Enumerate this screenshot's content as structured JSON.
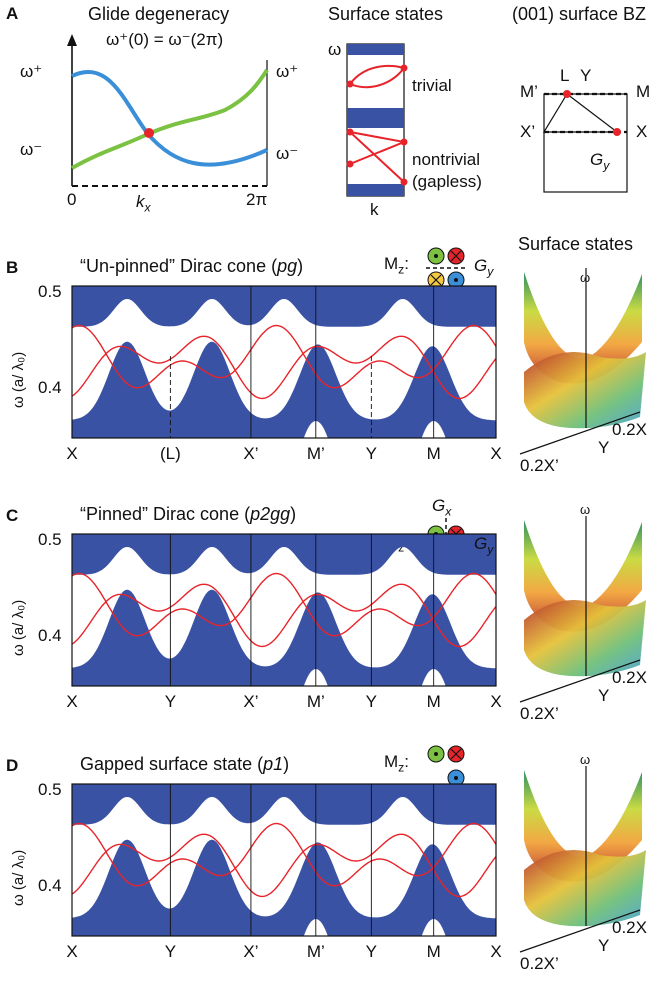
{
  "colors": {
    "band_fill": "#3a52a3",
    "surface_line": "#e8242b",
    "blue_curve": "#3a8fd8",
    "green_curve": "#7cc242",
    "axis": "#111111"
  },
  "panelA": {
    "label": "A",
    "title": "Glide degeneracy",
    "equation": "ω⁺(0) = ω⁻(2π)",
    "y_top": "ω⁺",
    "y_bottom": "ω⁻",
    "r_top": "ω⁺",
    "r_bottom": "ω⁻",
    "x_start": "0",
    "x_mid": "k",
    "x_mid_sub": "x",
    "x_end": "2π"
  },
  "surfaceSchematic": {
    "title": "Surface states",
    "omega": "ω",
    "trivial": "trivial",
    "nontrivial": "nontrivial",
    "gapless": "(gapless)",
    "k": "k"
  },
  "bz": {
    "title": "(001) surface BZ",
    "M_prime": "M’",
    "M": "M",
    "L": "L",
    "Y": "Y",
    "X_prime": "X’",
    "X": "X",
    "G": "G",
    "G_sub": "y"
  },
  "panels": [
    {
      "label": "B",
      "title_pre": "“Un-pinned” Dirac cone (",
      "title_it": "pg",
      "title_post": ")",
      "mz": "M",
      "mz_sub": "z",
      "gx": "",
      "gy": "G",
      "gy_sub": "y",
      "ylabel": "ω (a/ λ₀)",
      "ytick_top": "0.5",
      "ytick_bottom": "0.4",
      "xticks": [
        "X",
        "(L)",
        "X’",
        "M’",
        "Y",
        "M",
        "X"
      ],
      "right_title": "Surface states",
      "s_omega": "ω",
      "s_xp": "0.2X’",
      "s_y": "Y",
      "s_x": "0.2X"
    },
    {
      "label": "C",
      "title_pre": "“Pinned” Dirac cone (",
      "title_it": "p2gg",
      "title_post": ")",
      "mz": "M",
      "mz_sub": "z",
      "gx": "G",
      "gx_sub": "x",
      "gy": "G",
      "gy_sub": "y",
      "ylabel": "ω (a/ λ₀)",
      "ytick_top": "0.5",
      "ytick_bottom": "0.4",
      "xticks": [
        "X",
        "Y",
        "X’",
        "M’",
        "Y",
        "M",
        "X"
      ],
      "right_title": "",
      "s_omega": "ω",
      "s_xp": "0.2X’",
      "s_y": "Y",
      "s_x": "0.2X"
    },
    {
      "label": "D",
      "title_pre": "Gapped surface state (",
      "title_it": "p1",
      "title_post": ")",
      "mz": "M",
      "mz_sub": "z",
      "gx": "",
      "gy": "",
      "gy_sub": "",
      "ylabel": "ω (a/ λ₀)",
      "ytick_top": "0.5",
      "ytick_bottom": "0.4",
      "xticks": [
        "X",
        "Y",
        "X’",
        "M’",
        "Y",
        "M",
        "X"
      ],
      "right_title": "",
      "s_omega": "ω",
      "s_xp": "0.2X’",
      "s_y": "Y",
      "s_x": "0.2X"
    }
  ]
}
